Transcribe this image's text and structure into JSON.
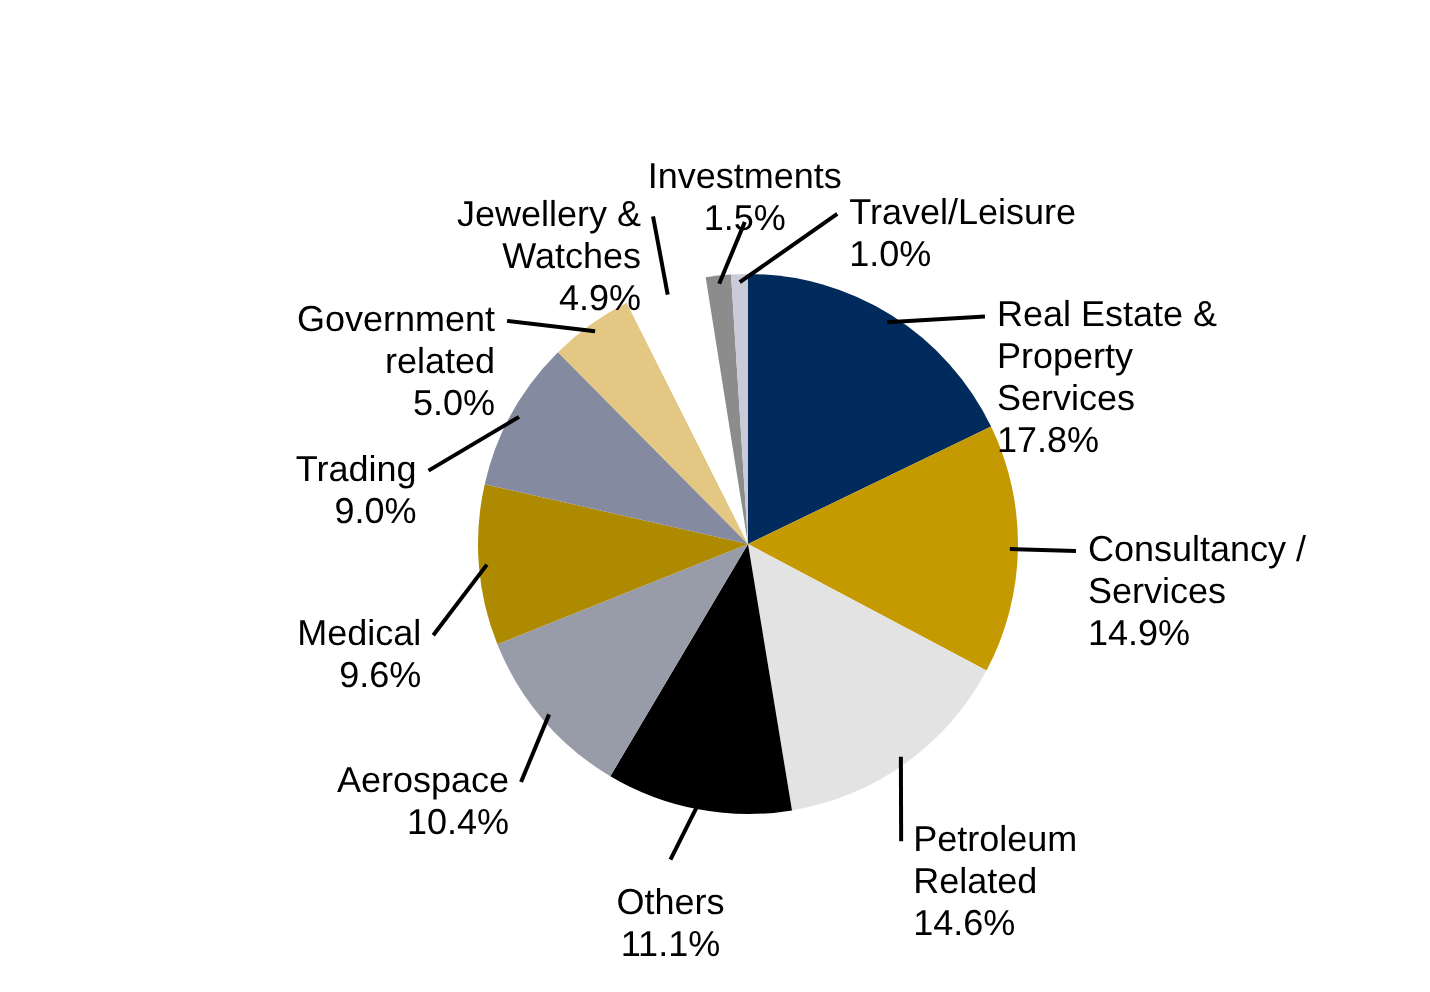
{
  "chart_data": {
    "type": "pie",
    "categories": [
      "Real Estate &\nProperty\nServices",
      "Consultancy /\nServices",
      "Petroleum\nRelated",
      "Others",
      "Aerospace",
      "Medical",
      "Trading",
      "Government\nrelated",
      "Jewellery &\nWatches",
      "Investments",
      "Travel/Leisure"
    ],
    "values": [
      17.8,
      14.9,
      14.6,
      11.1,
      10.4,
      9.6,
      9.0,
      5.0,
      4.9,
      1.5,
      1.0
    ],
    "value_labels": [
      "17.8%",
      "14.9%",
      "14.6%",
      "11.1%",
      "10.4%",
      "9.6%",
      "9.0%",
      "5.0%",
      "4.9%",
      "1.5%",
      "1.0%"
    ],
    "colors": [
      "#002b5c",
      "#c49a00",
      "#e3e3e3",
      "#000000",
      "#989ba8",
      "#ad8a00",
      "#848aa0",
      "#e3c783",
      "#ffffff",
      "#8c8c8c",
      "#c9ccd8"
    ]
  }
}
